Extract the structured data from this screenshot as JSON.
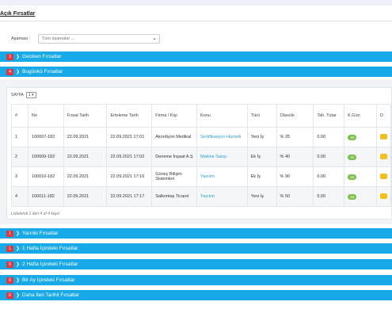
{
  "page": {
    "title": "Açık Fırsatlar"
  },
  "filter": {
    "label": "Aşaması :",
    "selected": "Tüm aşamalar ..."
  },
  "sections_top": [
    {
      "count": "3",
      "label": "Geciken Fırsatlar"
    },
    {
      "count": "4",
      "label": "Bugünkü Fırsatlar"
    }
  ],
  "table_panel": {
    "pager_label": "SAYFA",
    "pager_value": "1",
    "columns": [
      "#",
      "No",
      "Fırsat Tarih",
      "Erteleme Tarih",
      "Firma / Kişi",
      "Konu",
      "Türü",
      "Olasılık",
      "Tah. Tutar",
      "K.Gün",
      "D"
    ],
    "rows": [
      {
        "idx": "1",
        "no": "100007-182",
        "date": "22.09.2021",
        "postpone": "22.09.2021 17:01",
        "firm": "Akordiyon Medikal",
        "subject": "Sertifikasyon Hizmeti",
        "type": "Yeni İş",
        "prob": "% 25",
        "amount": "0.00",
        "kgun": "15"
      },
      {
        "idx": "2",
        "no": "100009-182",
        "date": "22.09.2021",
        "postpone": "22.09.2021 17:02",
        "firm": "Deneme İnşaat A.Ş",
        "subject": "Makine Satışı",
        "type": "Ek İş",
        "prob": "% 40",
        "amount": "0.00",
        "kgun": "15"
      },
      {
        "idx": "3",
        "no": "100010-182",
        "date": "22.09.2021",
        "postpone": "22.09.2021 17:16",
        "firm": "Güney Bilişim Sistemleri",
        "subject": "Yazılım",
        "type": "Ek İş",
        "prob": "% 90",
        "amount": "0.00",
        "kgun": "15"
      },
      {
        "idx": "4",
        "no": "100011-182",
        "date": "22.09.2021",
        "postpone": "22.09.2021 17:17",
        "firm": "Salkımtaş Ticaret",
        "subject": "Yazılım",
        "type": "Yeni İş",
        "prob": "% 50",
        "amount": "0.00",
        "kgun": "15"
      }
    ],
    "listed_text": "Listelendi 1 den 4 of 4 kayıt"
  },
  "sections_bottom": [
    {
      "count": "1",
      "label": "Yarınki Fırsatlar"
    },
    {
      "count": "1",
      "label": "1 Hafta İçindeki Fırsatlar"
    },
    {
      "count": "0",
      "label": "2 Hafta İçindeki Fırsatlar"
    },
    {
      "count": "0",
      "label": "Bir Ay İçindeki Fırsatlar"
    },
    {
      "count": "0",
      "label": "Daha İleri Tarihli Fırsatlar"
    }
  ],
  "colors": {
    "accent": "#17a9e8",
    "badge_red": "#e0383e",
    "badge_green": "#7cc04a",
    "badge_yellow": "#f2c01e"
  },
  "icons": {
    "section": "chevron-right-icon"
  }
}
